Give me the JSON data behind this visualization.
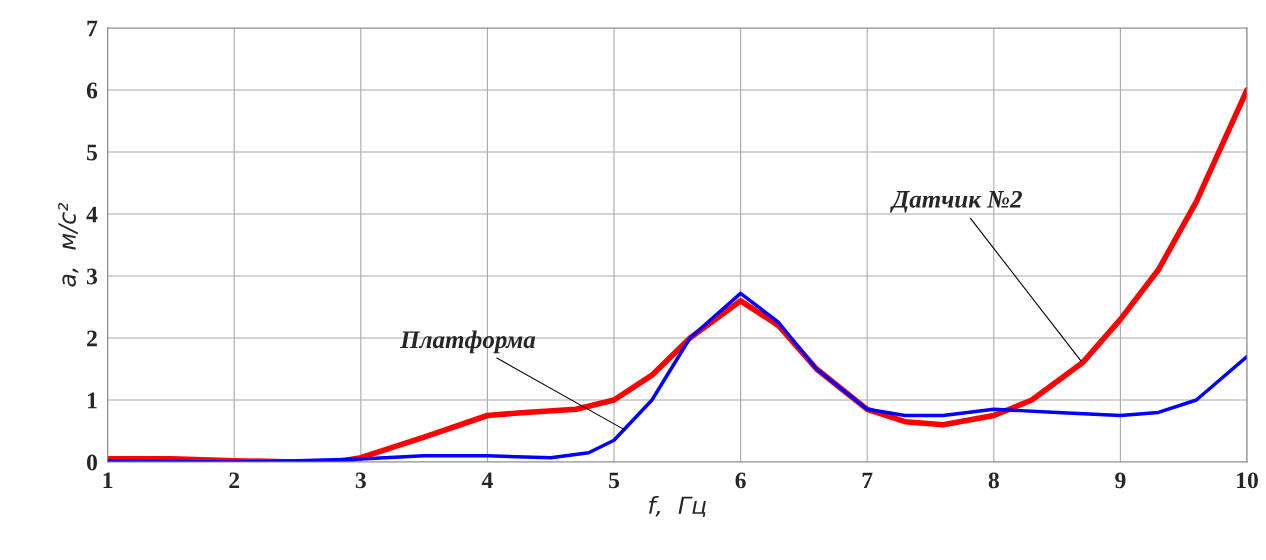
{
  "chart_data": {
    "type": "line",
    "xlabel": "f,  Гц",
    "ylabel": "a,  м/с²",
    "xlim": [
      1,
      10
    ],
    "ylim": [
      0,
      7
    ],
    "xticks": [
      1,
      2,
      3,
      4,
      5,
      6,
      7,
      8,
      9,
      10
    ],
    "yticks": [
      0,
      1,
      2,
      3,
      4,
      5,
      6,
      7
    ],
    "grid": true,
    "line_style": "solid",
    "marker": "none",
    "series": [
      {
        "color": "#ff0000",
        "x": [
          1,
          1.5,
          2,
          2.5,
          2.8,
          3,
          3.5,
          4,
          4.3,
          4.7,
          5,
          5.3,
          5.6,
          6,
          6.3,
          6.6,
          7,
          7.3,
          7.6,
          8,
          8.3,
          8.7,
          9,
          9.3,
          9.6,
          10
        ],
        "values": [
          0.05,
          0.05,
          0.02,
          0.0,
          0.0,
          0.07,
          0.4,
          0.75,
          0.8,
          0.85,
          1.0,
          1.4,
          2.0,
          2.6,
          2.2,
          1.5,
          0.85,
          0.65,
          0.6,
          0.75,
          1.0,
          1.6,
          2.3,
          3.1,
          4.2,
          6.0
        ]
      },
      {
        "color": "#0000ff",
        "x": [
          1,
          2,
          2.5,
          3,
          3.5,
          4,
          4.5,
          4.8,
          5,
          5.3,
          5.6,
          6,
          6.3,
          6.6,
          7,
          7.3,
          7.6,
          8,
          8.5,
          9,
          9.3,
          9.6,
          10
        ],
        "values": [
          0.02,
          0.0,
          0.02,
          0.05,
          0.1,
          0.1,
          0.07,
          0.15,
          0.35,
          1.0,
          2.0,
          2.72,
          2.25,
          1.5,
          0.85,
          0.75,
          0.75,
          0.85,
          0.8,
          0.75,
          0.8,
          1.0,
          1.7
        ]
      }
    ],
    "annotations": [
      {
        "text": "Платформа",
        "x": 5.1,
        "y": 0.5
      },
      {
        "text": "Датчик №2",
        "x": 8.7,
        "y": 1.6
      }
    ]
  }
}
